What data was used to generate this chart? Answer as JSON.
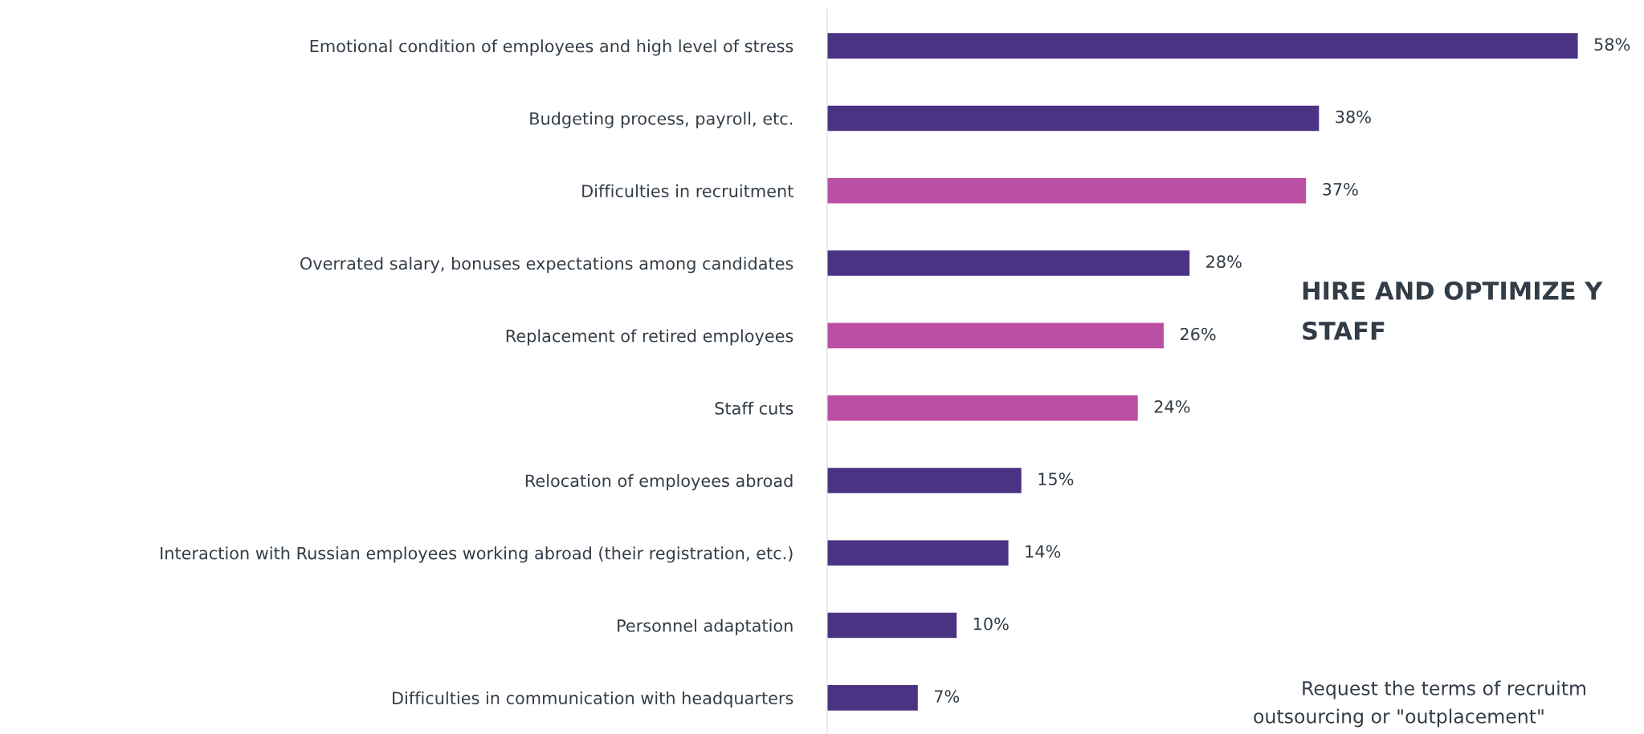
{
  "chart_data": {
    "type": "bar",
    "orientation": "horizontal",
    "categories": [
      "Emotional condition of employees and high level of stress",
      "Budgeting process, payroll, etc.",
      "Difficulties in recruitment",
      "Overrated salary, bonuses expectations among candidates",
      "Replacement of retired employees",
      "Staff cuts",
      "Relocation of employees abroad",
      "Interaction with Russian employees working abroad (their registration, etc.)",
      "Personnel adaptation",
      "Difficulties in communication with headquarters"
    ],
    "values": [
      58,
      38,
      37,
      28,
      26,
      24,
      15,
      14,
      10,
      7
    ],
    "colors": [
      "#4b3384",
      "#4b3384",
      "#bb4fa3",
      "#4b3384",
      "#bb4fa3",
      "#bb4fa3",
      "#4b3384",
      "#4b3384",
      "#4b3384",
      "#4b3384"
    ],
    "value_labels": [
      "58%",
      "38%",
      "37%",
      "28%",
      "26%",
      "24%",
      "15%",
      "14%",
      "10%",
      "7%"
    ],
    "tick_labels": "y",
    "annotations": [
      "HIRE AND OPTIMIZE Y",
      "STAFF",
      "Request the terms of recruitm",
      "outsourcing or \"outplacement\""
    ]
  }
}
